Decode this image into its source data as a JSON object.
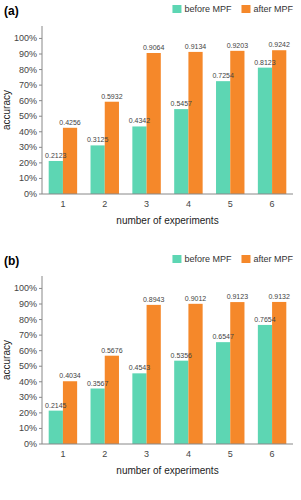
{
  "chart_data": [
    {
      "type": "bar",
      "title": "(a)",
      "categories": [
        "1",
        "2",
        "3",
        "4",
        "5",
        "6"
      ],
      "series": [
        {
          "name": "before MPF",
          "color": "#5DD6B3",
          "values": [
            0.2123,
            0.3125,
            0.4342,
            0.5457,
            0.7254,
            0.8123
          ]
        },
        {
          "name": "after MPF",
          "color": "#F5882A",
          "values": [
            0.4256,
            0.5932,
            0.9064,
            0.9134,
            0.9203,
            0.9242
          ]
        }
      ],
      "xlabel": "number of experiments",
      "ylabel": "accuracy",
      "ylim": [
        0,
        1.08
      ],
      "yticks": [
        {
          "value": 0,
          "label": "0%"
        },
        {
          "value": 0.1,
          "label": "10%"
        },
        {
          "value": 0.2,
          "label": "20%"
        },
        {
          "value": 0.3,
          "label": "30%"
        },
        {
          "value": 0.4,
          "label": "40%"
        },
        {
          "value": 0.5,
          "label": "50%"
        },
        {
          "value": 0.6,
          "label": "60%"
        },
        {
          "value": 0.7,
          "label": "70%"
        },
        {
          "value": 0.8,
          "label": "80%"
        },
        {
          "value": 0.9,
          "label": "90%"
        },
        {
          "value": 1,
          "label": "100%"
        }
      ],
      "grid": false,
      "legend": "upper right",
      "data_labels": true
    },
    {
      "type": "bar",
      "title": "(b)",
      "categories": [
        "1",
        "2",
        "3",
        "4",
        "5",
        "6"
      ],
      "series": [
        {
          "name": "before MPF",
          "color": "#5DD6B3",
          "values": [
            0.2145,
            0.3567,
            0.4543,
            0.5356,
            0.6547,
            0.7654
          ]
        },
        {
          "name": "after MPF",
          "color": "#F5882A",
          "values": [
            0.4034,
            0.5676,
            0.8943,
            0.9012,
            0.9123,
            0.9132
          ]
        }
      ],
      "xlabel": "number of experiments",
      "ylabel": "accuracy",
      "ylim": [
        0,
        1.08
      ],
      "yticks": [
        {
          "value": 0,
          "label": "0%"
        },
        {
          "value": 0.1,
          "label": "10%"
        },
        {
          "value": 0.2,
          "label": "20%"
        },
        {
          "value": 0.3,
          "label": "30%"
        },
        {
          "value": 0.4,
          "label": "40%"
        },
        {
          "value": 0.5,
          "label": "50%"
        },
        {
          "value": 0.6,
          "label": "60%"
        },
        {
          "value": 0.7,
          "label": "70%"
        },
        {
          "value": 0.8,
          "label": "80%"
        },
        {
          "value": 0.9,
          "label": "90%"
        },
        {
          "value": 1,
          "label": "100%"
        }
      ],
      "grid": false,
      "legend": "upper right",
      "data_labels": true
    }
  ]
}
